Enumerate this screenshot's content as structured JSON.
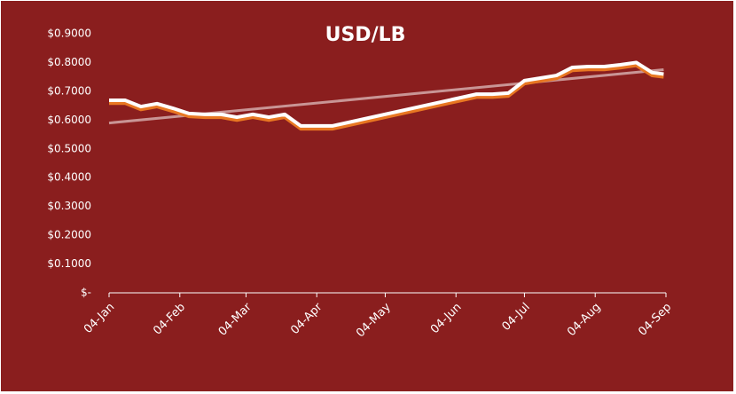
{
  "chart_data": {
    "type": "line",
    "title": "USD/LB",
    "drop_lines": true,
    "series": [
      {
        "color": "#ffffff",
        "x": [
          1,
          8,
          15,
          22,
          29,
          36,
          43,
          50,
          57,
          64,
          71,
          78,
          85,
          92,
          99,
          162,
          169,
          176,
          183,
          190,
          197,
          204,
          211,
          218,
          225,
          232,
          239,
          244
        ],
        "values": [
          0.669,
          0.669,
          0.647,
          0.657,
          0.641,
          0.623,
          0.62,
          0.62,
          0.61,
          0.62,
          0.61,
          0.62,
          0.58,
          0.58,
          0.58,
          0.69,
          0.69,
          0.694,
          0.737,
          0.746,
          0.755,
          0.783,
          0.786,
          0.786,
          0.792,
          0.8,
          0.765,
          0.76
        ]
      },
      {
        "color": "#e87722",
        "x": [
          1,
          8,
          15,
          22,
          29,
          36,
          43,
          50,
          57,
          64,
          71,
          78,
          85,
          92,
          99,
          162,
          169,
          176,
          183,
          190,
          197,
          204,
          211,
          218,
          225,
          232,
          239,
          244
        ],
        "values": [
          0.659,
          0.659,
          0.637,
          0.647,
          0.631,
          0.613,
          0.61,
          0.61,
          0.6,
          0.61,
          0.6,
          0.61,
          0.57,
          0.57,
          0.57,
          0.68,
          0.68,
          0.684,
          0.727,
          0.736,
          0.745,
          0.773,
          0.776,
          0.776,
          0.782,
          0.79,
          0.755,
          0.75
        ]
      }
    ],
    "trendline": {
      "color": "#d9b3b3",
      "x": [
        1,
        244
      ],
      "values": [
        0.59,
        0.775
      ]
    },
    "xlim": [
      1,
      245
    ],
    "xticks": [
      {
        "value": 1,
        "label": "04-Jan"
      },
      {
        "value": 32,
        "label": "04-Feb"
      },
      {
        "value": 61,
        "label": "04-Mar"
      },
      {
        "value": 92,
        "label": "04-Apr"
      },
      {
        "value": 122,
        "label": "04-May"
      },
      {
        "value": 153,
        "label": "04-Jun"
      },
      {
        "value": 183,
        "label": "04-Jul"
      },
      {
        "value": 214,
        "label": "04-Aug"
      },
      {
        "value": 245,
        "label": "04-Sep"
      }
    ],
    "ylim": [
      0,
      0.9
    ],
    "yticks": [
      {
        "value": 0,
        "label": "$-"
      },
      {
        "value": 0.1,
        "label": "$0.1000"
      },
      {
        "value": 0.2,
        "label": "$0.2000"
      },
      {
        "value": 0.3,
        "label": "$0.3000"
      },
      {
        "value": 0.4,
        "label": "$0.4000"
      },
      {
        "value": 0.5,
        "label": "$0.5000"
      },
      {
        "value": 0.6,
        "label": "$0.6000"
      },
      {
        "value": 0.7,
        "label": "$0.7000"
      },
      {
        "value": 0.8,
        "label": "$0.8000"
      },
      {
        "value": 0.9,
        "label": "$0.9000"
      }
    ]
  }
}
